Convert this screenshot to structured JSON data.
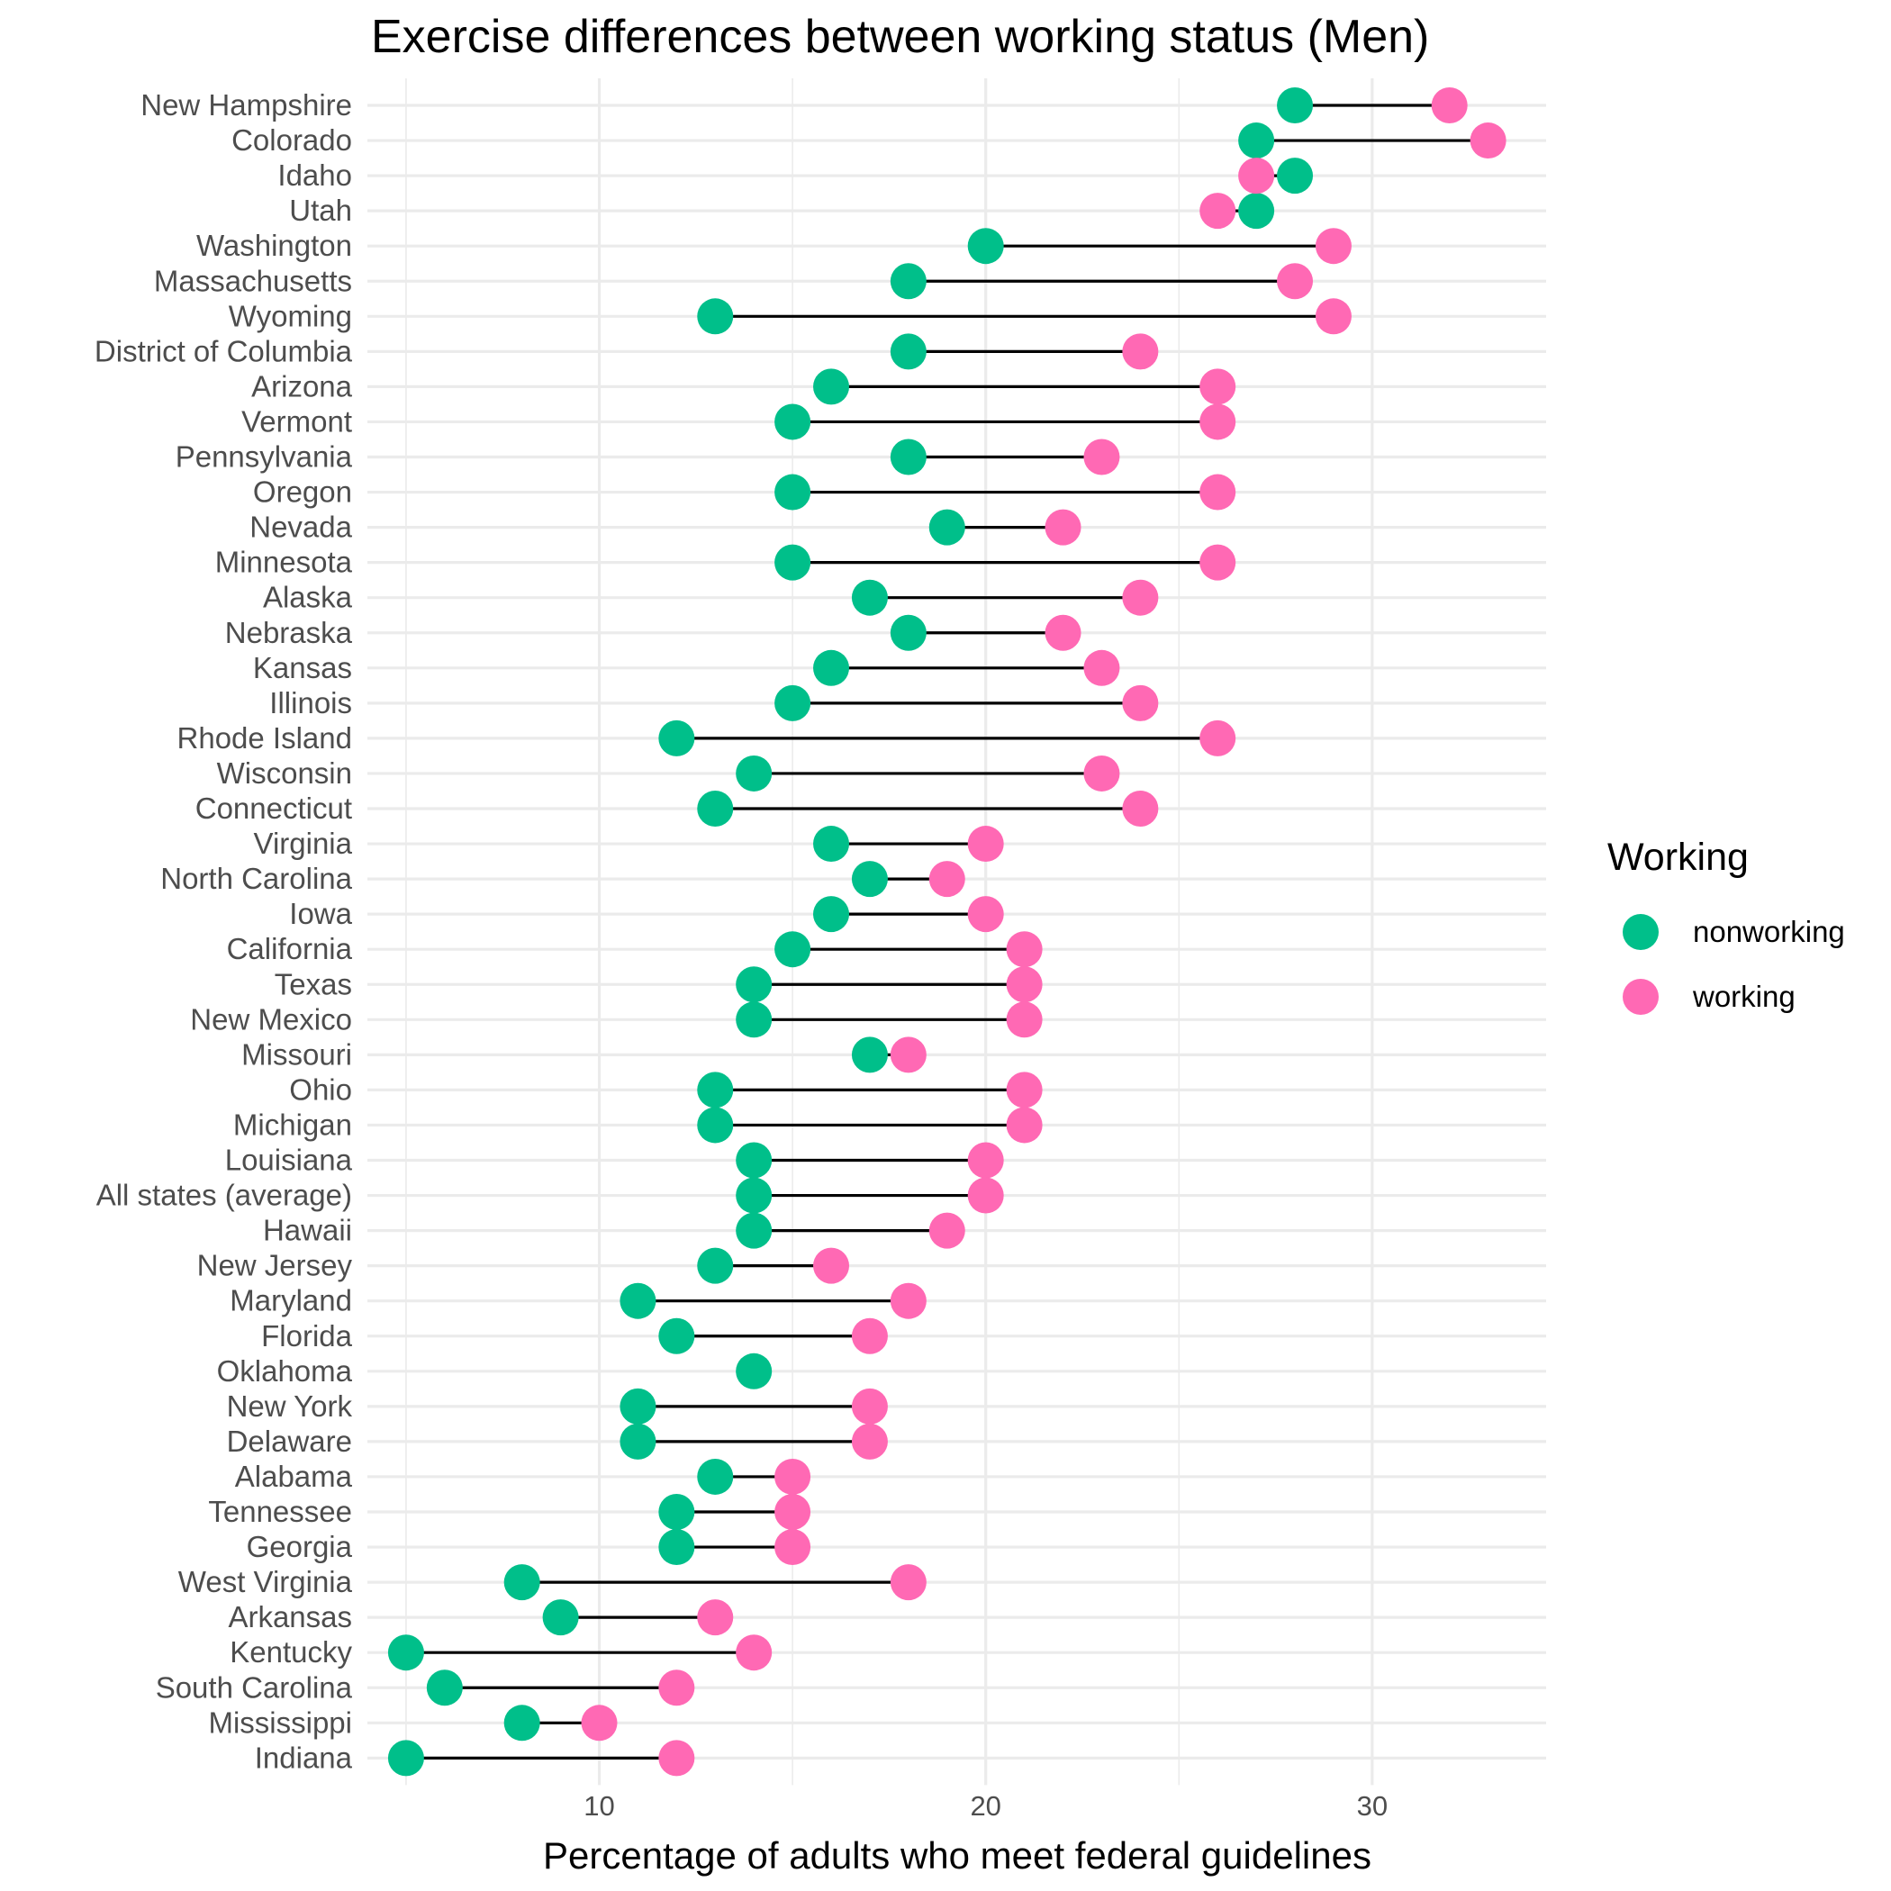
{
  "colors": {
    "nonworking": "#00BF8A",
    "working": "#FF69B4"
  },
  "chart_data": {
    "type": "dumbbell",
    "title": "Exercise differences between working status (Men)",
    "xlabel": "Percentage of adults who meet federal guidelines",
    "ylabel": "",
    "xlim": [
      4.0,
      34.5
    ],
    "x_ticks": [
      10,
      20,
      30
    ],
    "grid": true,
    "legend": {
      "title": "Working",
      "position": "right",
      "entries": [
        "nonworking",
        "working"
      ]
    },
    "series_order": [
      "nonworking",
      "working"
    ],
    "categories": [
      "New Hampshire",
      "Colorado",
      "Idaho",
      "Utah",
      "Washington",
      "Massachusetts",
      "Wyoming",
      "District of Columbia",
      "Arizona",
      "Vermont",
      "Pennsylvania",
      "Oregon",
      "Nevada",
      "Minnesota",
      "Alaska",
      "Nebraska",
      "Kansas",
      "Illinois",
      "Rhode Island",
      "Wisconsin",
      "Connecticut",
      "Virginia",
      "North Carolina",
      "Iowa",
      "California",
      "Texas",
      "New Mexico",
      "Missouri",
      "Ohio",
      "Michigan",
      "Louisiana",
      "All states (average)",
      "Hawaii",
      "New Jersey",
      "Maryland",
      "Florida",
      "Oklahoma",
      "New York",
      "Delaware",
      "Alabama",
      "Tennessee",
      "Georgia",
      "West Virginia",
      "Arkansas",
      "Kentucky",
      "South Carolina",
      "Mississippi",
      "Indiana"
    ],
    "series": [
      {
        "name": "nonworking",
        "values": [
          28,
          27,
          28,
          27,
          20,
          18,
          13,
          18,
          16,
          15,
          18,
          15,
          19,
          15,
          17,
          18,
          16,
          15,
          12,
          14,
          13,
          16,
          17,
          16,
          15,
          14,
          14,
          17,
          13,
          13,
          14,
          14,
          14,
          13,
          11,
          12,
          14,
          11,
          11,
          13,
          12,
          12,
          8,
          9,
          5,
          6,
          8,
          5
        ]
      },
      {
        "name": "working",
        "values": [
          32,
          33,
          27,
          26,
          29,
          28,
          29,
          24,
          26,
          26,
          23,
          26,
          22,
          26,
          24,
          22,
          23,
          24,
          26,
          23,
          24,
          20,
          19,
          20,
          21,
          21,
          21,
          18,
          21,
          21,
          20,
          20,
          19,
          16,
          18,
          17,
          null,
          17,
          17,
          15,
          15,
          15,
          18,
          13,
          14,
          12,
          10,
          12
        ]
      }
    ]
  }
}
